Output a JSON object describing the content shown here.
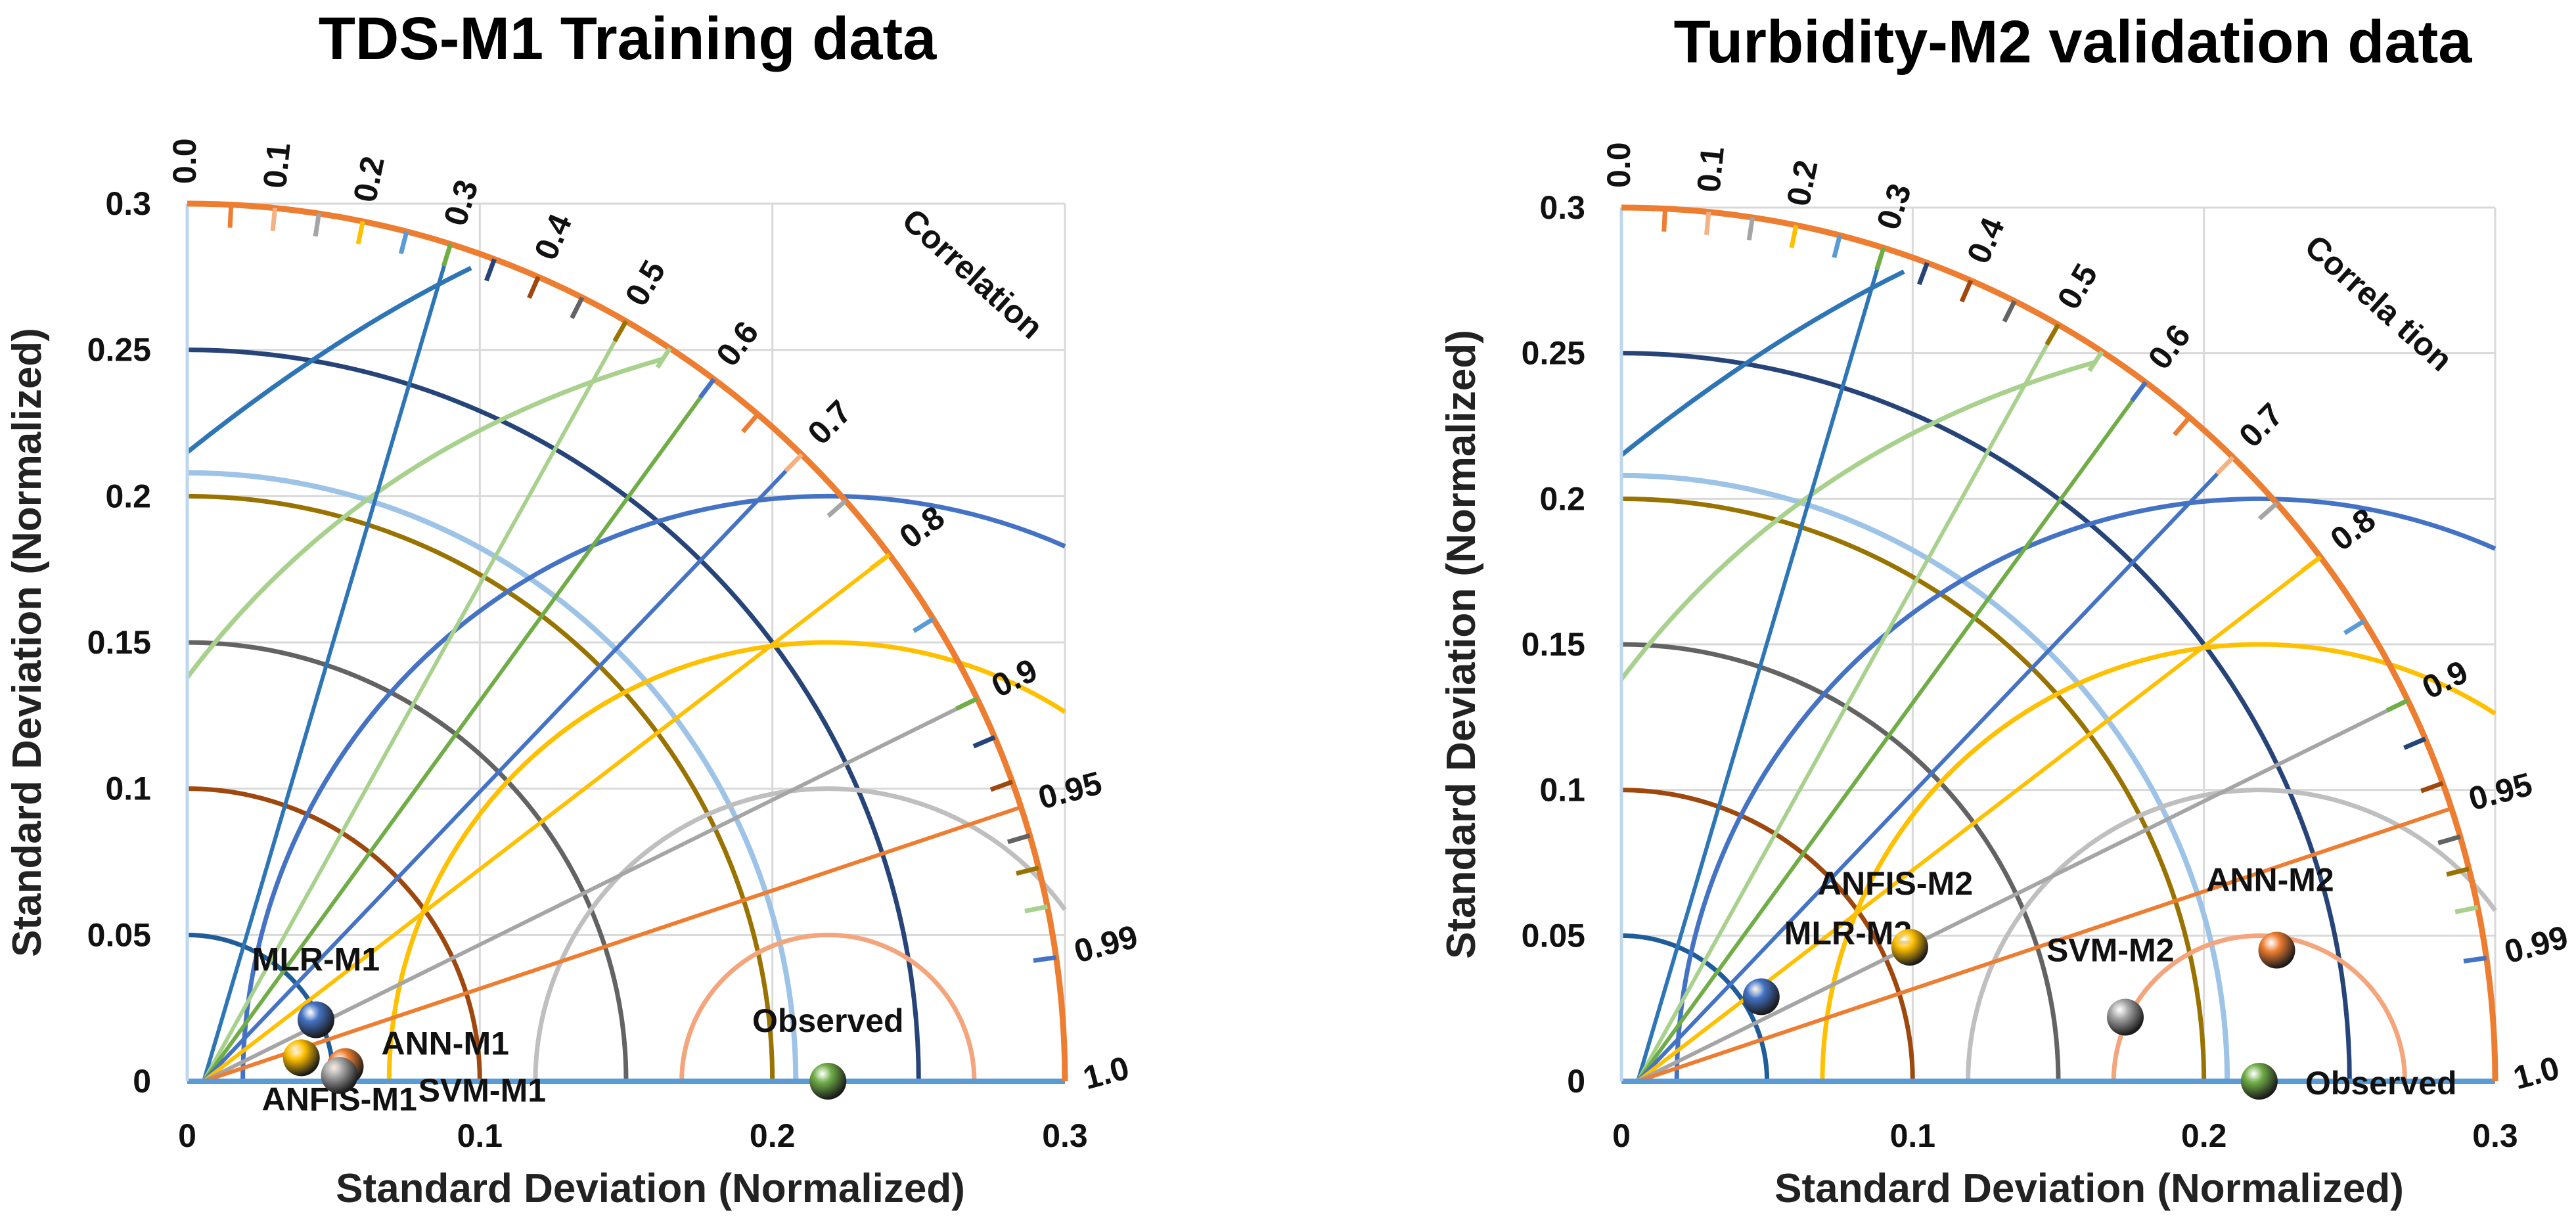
{
  "chart_data": [
    {
      "type": "scatter",
      "subtype": "taylor-diagram",
      "title": "TDS-M1 Training data",
      "xlabel": "Standard Deviation (Normalized)",
      "ylabel": "Standard Deviation (Normalized)",
      "xlim": [
        0,
        0.3
      ],
      "ylim": [
        0,
        0.3
      ],
      "x_ticks": [
        "0",
        "0.1",
        "0.2",
        "0.3"
      ],
      "y_ticks": [
        "0",
        "0.05",
        "0.1",
        "0.15",
        "0.2",
        "0.25",
        "0.3"
      ],
      "correlation_title": "Correlation",
      "correlation_ticks": [
        "0.0",
        "0.1",
        "0.2",
        "0.3",
        "0.4",
        "0.5",
        "0.6",
        "0.7",
        "0.8",
        "0.9",
        "0.95",
        "0.99",
        "1.0"
      ],
      "points": [
        {
          "name": "MLR-M1",
          "x": 0.044,
          "y": 0.021,
          "color": "#4472c4"
        },
        {
          "name": "ANN-M1",
          "x": 0.054,
          "y": 0.005,
          "color": "#ed7d31"
        },
        {
          "name": "ANFIS-M1",
          "x": 0.039,
          "y": 0.008,
          "color": "#ffc000"
        },
        {
          "name": "SVM-M1",
          "x": 0.052,
          "y": 0.002,
          "color": "#a5a5a5"
        },
        {
          "name": "Observed",
          "x": 0.219,
          "y": 0.0,
          "color": "#70ad47"
        }
      ]
    },
    {
      "type": "scatter",
      "subtype": "taylor-diagram",
      "title": "Turbidity-M2 validation data",
      "xlabel": "Standard Deviation (Normalized)",
      "ylabel": "Standard Deviation (Normalized)",
      "xlim": [
        0,
        0.3
      ],
      "ylim": [
        0,
        0.3
      ],
      "x_ticks": [
        "0",
        "0.1",
        "0.2",
        "0.3"
      ],
      "y_ticks": [
        "0",
        "0.05",
        "0.1",
        "0.15",
        "0.2",
        "0.25",
        "0.3"
      ],
      "correlation_title": "Correla tion",
      "correlation_ticks": [
        "0.0",
        "0.1",
        "0.2",
        "0.3",
        "0.4",
        "0.5",
        "0.6",
        "0.7",
        "0.8",
        "0.9",
        "0.95",
        "0.99",
        "1.0"
      ],
      "points": [
        {
          "name": "MLR-M2",
          "x": 0.048,
          "y": 0.029,
          "color": "#4472c4"
        },
        {
          "name": "ANN-M2",
          "x": 0.225,
          "y": 0.045,
          "color": "#ed7d31"
        },
        {
          "name": "ANFIS-M2",
          "x": 0.099,
          "y": 0.046,
          "color": "#ffc000"
        },
        {
          "name": "SVM-M2",
          "x": 0.173,
          "y": 0.022,
          "color": "#a5a5a5"
        },
        {
          "name": "Observed",
          "x": 0.219,
          "y": 0.0,
          "color": "#70ad47"
        }
      ]
    }
  ],
  "style": {
    "rms_colors": [
      "#2e75b6",
      "#9e480e",
      "#636363",
      "#997300",
      "#264478",
      "#ffc000",
      "#70ad47"
    ],
    "corr_line_colors": [
      "#5b9bd5",
      "#2e75b6",
      "#70ad47",
      "#4472c4",
      "#ffc000",
      "#a5a5a5",
      "#ed7d31"
    ],
    "outer_arc": "#ed7d31",
    "observed_arc": "#f4a57c",
    "grid": "#d9d9d9"
  }
}
